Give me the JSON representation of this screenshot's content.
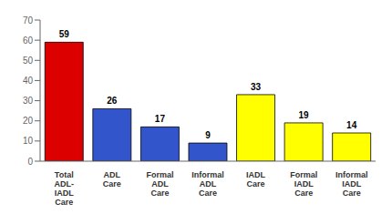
{
  "chart_data": {
    "type": "bar",
    "categories": [
      "Total\nADL-\nIADL\nCare",
      "ADL\nCare",
      "Formal\nADL\nCare",
      "Informal\nADL\nCare",
      "IADL\nCare",
      "Formal\nIADL\nCare",
      "Informal\nIADL\nCare"
    ],
    "values": [
      59,
      26,
      17,
      9,
      33,
      19,
      14
    ],
    "colors": [
      "#dd0000",
      "#3355cc",
      "#3355cc",
      "#3355cc",
      "#ffff00",
      "#ffff00",
      "#ffff00"
    ],
    "ylim": [
      0,
      70
    ],
    "yticks": [
      0,
      10,
      20,
      30,
      40,
      50,
      60,
      70
    ],
    "data_labels": true,
    "grid": false
  }
}
